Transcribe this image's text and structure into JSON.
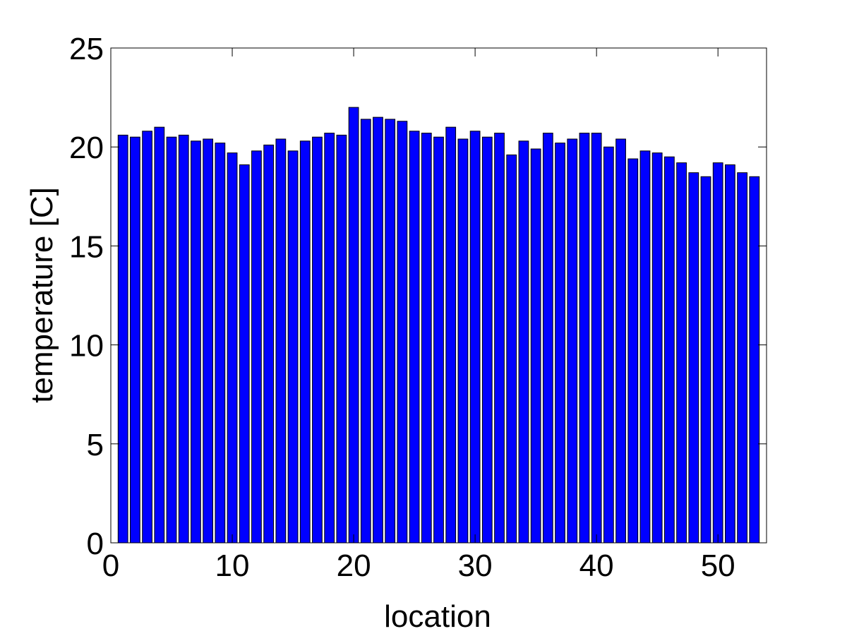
{
  "chart_data": {
    "type": "bar",
    "title": "",
    "xlabel": "location",
    "ylabel": "temperature [C]",
    "xlim": [
      0,
      54
    ],
    "ylim": [
      0,
      25
    ],
    "x_ticks": [
      0,
      10,
      20,
      30,
      40,
      50
    ],
    "y_ticks": [
      0,
      5,
      10,
      15,
      20,
      25
    ],
    "grid": false,
    "bar_color": "#0000ff",
    "edge_color": "#000000",
    "categories": [
      1,
      2,
      3,
      4,
      5,
      6,
      7,
      8,
      9,
      10,
      11,
      12,
      13,
      14,
      15,
      16,
      17,
      18,
      19,
      20,
      21,
      22,
      23,
      24,
      25,
      26,
      27,
      28,
      29,
      30,
      31,
      32,
      33,
      34,
      35,
      36,
      37,
      38,
      39,
      40,
      41,
      42,
      43,
      44,
      45,
      46,
      47,
      48,
      49,
      50,
      51,
      52,
      53
    ],
    "values": [
      20.6,
      20.5,
      20.8,
      21.0,
      20.5,
      20.6,
      20.3,
      20.4,
      20.2,
      19.7,
      19.1,
      19.8,
      20.1,
      20.4,
      19.8,
      20.3,
      20.5,
      20.7,
      20.6,
      22.0,
      21.4,
      21.5,
      21.4,
      21.3,
      20.8,
      20.7,
      20.5,
      21.0,
      20.4,
      20.8,
      20.5,
      20.7,
      19.6,
      20.3,
      19.9,
      20.7,
      20.2,
      20.4,
      20.7,
      20.7,
      20.0,
      20.4,
      19.4,
      19.8,
      19.7,
      19.5,
      19.2,
      18.7,
      18.5,
      19.2,
      19.1,
      18.7,
      18.5
    ]
  }
}
